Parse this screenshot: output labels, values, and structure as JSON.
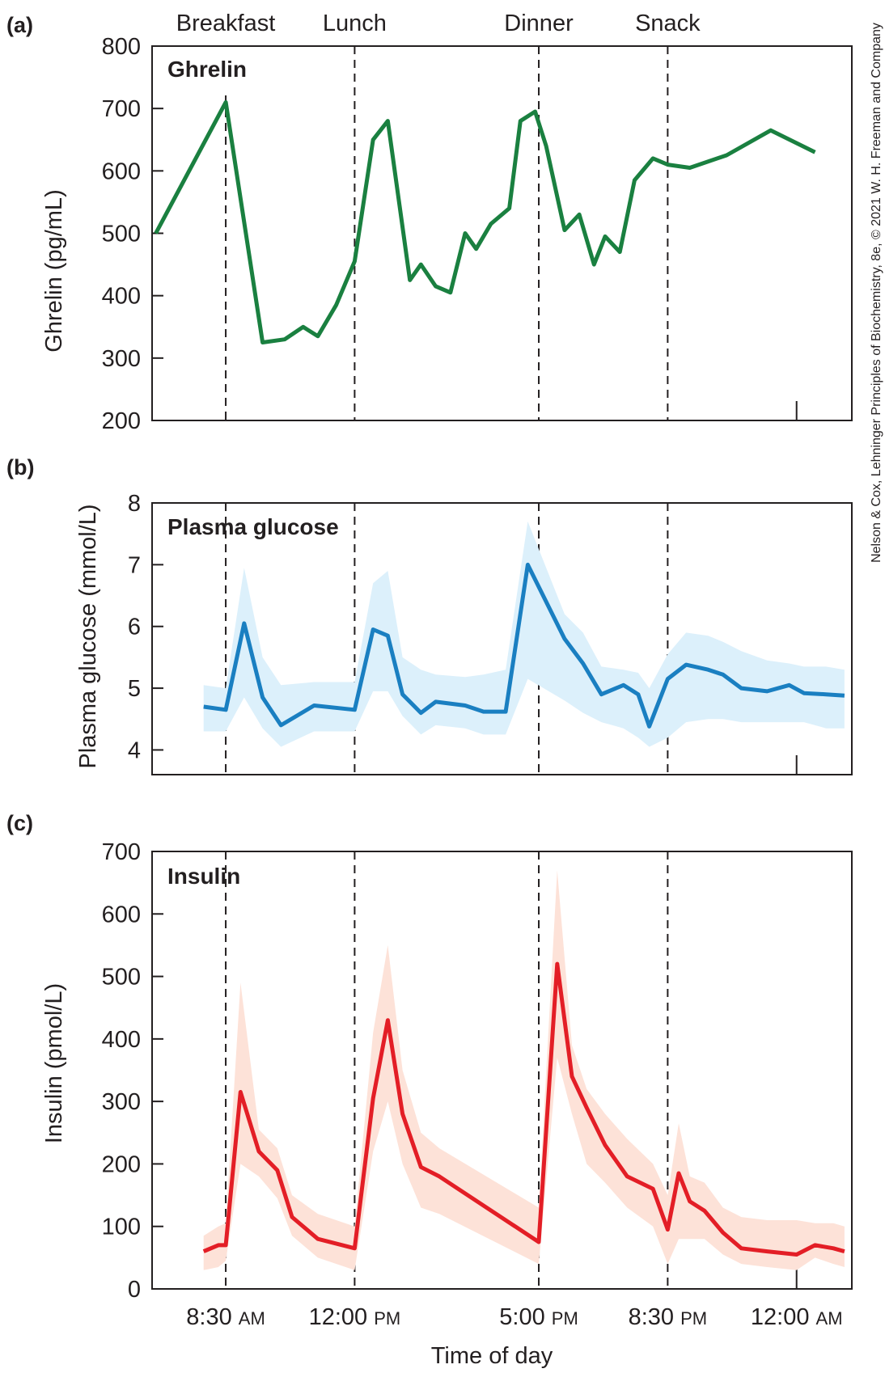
{
  "figure": {
    "x_axis_title": "Time of day",
    "credit": "Nelson & Cox, Lehninger Principles of Biochemistry, 8e, © 2021 W. H. Freeman and Company",
    "meals": [
      "Breakfast",
      "Lunch",
      "Dinner",
      "Snack"
    ],
    "meal_hours": [
      8.5,
      12.0,
      17.0,
      20.5
    ],
    "x_ticks": [
      {
        "hour": 8.5,
        "label": "8:30",
        "suffix": "AM"
      },
      {
        "hour": 12.0,
        "label": "12:00",
        "suffix": "PM"
      },
      {
        "hour": 17.0,
        "label": "5:00",
        "suffix": "PM"
      },
      {
        "hour": 20.5,
        "label": "8:30",
        "suffix": "PM"
      },
      {
        "hour": 24.0,
        "label": "12:00",
        "suffix": "AM"
      }
    ],
    "x_range_hours": [
      6.5,
      25.5
    ]
  },
  "chart_data": [
    {
      "type": "line",
      "panel": "(a)",
      "title": "Ghrelin",
      "ylabel": "Ghrelin (pg/mL)",
      "ylim": [
        200,
        800
      ],
      "yticks": [
        200,
        300,
        400,
        500,
        600,
        700,
        800
      ],
      "color": "#1a8040",
      "series": [
        {
          "x": [
            6.6,
            8.5,
            9.5,
            10.1,
            10.6,
            11.0,
            11.5,
            12.0,
            12.5,
            12.9,
            13.5,
            13.8,
            14.2,
            14.6,
            15.0,
            15.3,
            15.7,
            16.2,
            16.5,
            16.9,
            17.2,
            17.7,
            18.1,
            18.5,
            18.8,
            19.2,
            19.6,
            20.1,
            20.5,
            21.1,
            22.1,
            23.3,
            24.5
          ],
          "values": [
            500,
            710,
            325,
            330,
            350,
            335,
            385,
            455,
            650,
            680,
            425,
            450,
            415,
            405,
            500,
            475,
            515,
            540,
            680,
            695,
            640,
            505,
            530,
            450,
            495,
            470,
            585,
            620,
            610,
            605,
            625,
            665,
            630
          ]
        }
      ]
    },
    {
      "type": "line",
      "panel": "(b)",
      "title": "Plasma glucose",
      "ylabel": "Plasma glucose (mmol/L)",
      "ylim": [
        3.6,
        8
      ],
      "yticks": [
        4,
        5,
        6,
        7,
        8
      ],
      "color": "#1a7fc1",
      "band_color": "#dcf0fb",
      "series": [
        {
          "x": [
            7.9,
            8.5,
            9.0,
            9.5,
            10.0,
            10.9,
            12.0,
            12.5,
            12.9,
            13.3,
            13.8,
            14.2,
            15.0,
            15.5,
            16.1,
            16.7,
            17.7,
            18.2,
            18.7,
            19.3,
            19.7,
            20.0,
            20.5,
            21.0,
            21.6,
            22.0,
            22.5,
            23.2,
            23.8,
            24.2,
            24.8,
            25.3
          ],
          "values": [
            4.7,
            4.65,
            6.05,
            4.85,
            4.4,
            4.72,
            4.65,
            5.95,
            5.85,
            4.9,
            4.6,
            4.78,
            4.72,
            4.62,
            4.62,
            7.0,
            5.8,
            5.4,
            4.9,
            5.05,
            4.9,
            4.38,
            5.15,
            5.38,
            5.3,
            5.22,
            5.0,
            4.95,
            5.05,
            4.92,
            4.9,
            4.88
          ],
          "upper": [
            5.05,
            5.0,
            6.95,
            5.5,
            5.05,
            5.1,
            5.1,
            6.7,
            6.9,
            5.5,
            5.3,
            5.22,
            5.18,
            5.22,
            5.3,
            7.7,
            6.2,
            5.9,
            5.35,
            5.3,
            5.25,
            5.0,
            5.55,
            5.9,
            5.85,
            5.75,
            5.6,
            5.45,
            5.4,
            5.35,
            5.35,
            5.3
          ],
          "lower": [
            4.3,
            4.3,
            4.85,
            4.35,
            4.05,
            4.3,
            4.3,
            4.95,
            4.95,
            4.55,
            4.25,
            4.4,
            4.35,
            4.25,
            4.25,
            5.15,
            4.8,
            4.6,
            4.45,
            4.35,
            4.2,
            4.05,
            4.2,
            4.45,
            4.5,
            4.5,
            4.45,
            4.45,
            4.45,
            4.45,
            4.35,
            4.35
          ]
        }
      ]
    },
    {
      "type": "line",
      "panel": "(c)",
      "title": "Insulin",
      "ylabel": "Insulin (pmol/L)",
      "ylim": [
        0,
        700
      ],
      "yticks": [
        0,
        100,
        200,
        300,
        400,
        500,
        600,
        700
      ],
      "color": "#e31e26",
      "band_color": "#fde2d8",
      "series": [
        {
          "x": [
            7.9,
            8.3,
            8.5,
            8.9,
            9.4,
            9.9,
            10.3,
            11.0,
            12.0,
            12.5,
            12.9,
            13.3,
            13.8,
            14.3,
            17.0,
            17.5,
            17.9,
            18.3,
            18.8,
            19.4,
            20.1,
            20.5,
            20.8,
            21.1,
            21.5,
            22.0,
            22.5,
            23.2,
            24.0,
            24.5,
            25.0,
            25.3
          ],
          "values": [
            60,
            70,
            70,
            315,
            220,
            190,
            115,
            80,
            65,
            305,
            430,
            280,
            195,
            180,
            75,
            520,
            340,
            290,
            230,
            180,
            160,
            95,
            185,
            140,
            125,
            90,
            65,
            60,
            55,
            70,
            65,
            60
          ],
          "upper": [
            85,
            100,
            105,
            490,
            255,
            225,
            150,
            120,
            100,
            410,
            550,
            350,
            250,
            225,
            130,
            670,
            390,
            320,
            280,
            240,
            200,
            150,
            265,
            180,
            170,
            130,
            115,
            110,
            110,
            105,
            105,
            100
          ],
          "lower": [
            30,
            35,
            45,
            200,
            180,
            145,
            85,
            50,
            30,
            220,
            300,
            200,
            130,
            120,
            40,
            370,
            280,
            200,
            170,
            130,
            100,
            40,
            80,
            80,
            80,
            55,
            40,
            35,
            30,
            50,
            40,
            35
          ]
        }
      ]
    }
  ]
}
